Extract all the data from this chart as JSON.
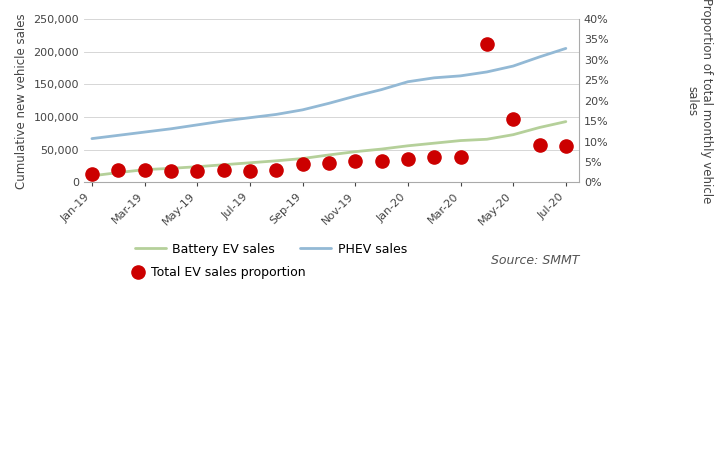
{
  "x_indices": [
    0,
    1,
    2,
    3,
    4,
    5,
    6,
    7,
    8,
    9,
    10,
    11,
    12,
    13,
    14,
    15,
    16,
    17,
    18
  ],
  "bev_sales": [
    10000,
    15000,
    19500,
    21500,
    24000,
    27000,
    30000,
    33000,
    36500,
    42000,
    47000,
    51000,
    56000,
    60000,
    64000,
    66000,
    73000,
    84000,
    93000
  ],
  "phev_sales": [
    67000,
    72000,
    77000,
    82000,
    88000,
    94000,
    99000,
    104000,
    111000,
    121000,
    132000,
    142000,
    154000,
    160000,
    163000,
    169000,
    178000,
    192000,
    205000
  ],
  "ev_proportion": [
    0.02,
    0.03,
    0.03,
    0.028,
    0.028,
    0.03,
    0.027,
    0.03,
    0.045,
    0.048,
    0.052,
    0.053,
    0.058,
    0.062,
    0.063,
    0.34,
    0.155,
    0.092,
    0.09
  ],
  "bev_color": "#b5d09a",
  "phev_color": "#93b9d5",
  "prop_color": "#cc0000",
  "prop_size": 90,
  "ylim_left": [
    0,
    250000
  ],
  "ylim_right": [
    0,
    0.4
  ],
  "yticks_left": [
    0,
    50000,
    100000,
    150000,
    200000,
    250000
  ],
  "yticks_right": [
    0.0,
    0.05,
    0.1,
    0.15,
    0.2,
    0.25,
    0.3,
    0.35,
    0.4
  ],
  "ylabel_left": "Cumulative new vehicle sales",
  "ylabel_right": "Proportion of total monthly vehicle\nsales",
  "legend_bev": "Battery EV sales",
  "legend_phev": "PHEV sales",
  "legend_prop": "Total EV sales proportion",
  "source_text": "Source: SMMT",
  "x_tick_indices": [
    0,
    2,
    4,
    6,
    8,
    10,
    12,
    14,
    16,
    18
  ],
  "x_tick_labels": [
    "Jan-19",
    "Mar-19",
    "May-19",
    "Jul-19",
    "Sep-19",
    "Nov-19",
    "Jan-20",
    "Mar-20",
    "May-20",
    "Jul-20"
  ],
  "line_width": 2.0,
  "figsize": [
    7.28,
    4.71
  ],
  "dpi": 100
}
